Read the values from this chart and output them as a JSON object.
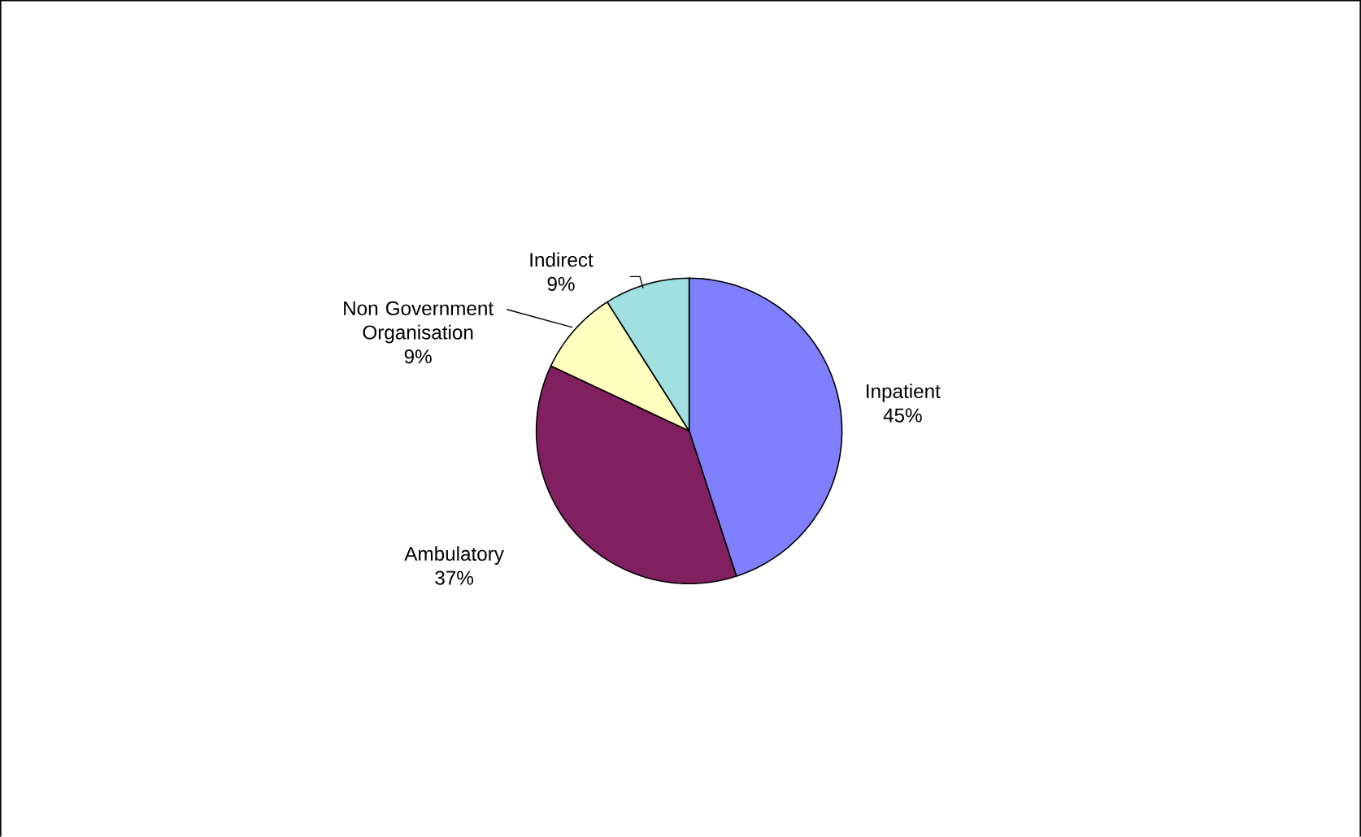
{
  "chart_data": {
    "type": "pie",
    "categories": [
      "Inpatient",
      "Ambulatory",
      "Non Government Organisation",
      "Indirect"
    ],
    "values": [
      45,
      37,
      9,
      9
    ],
    "value_labels": [
      "45%",
      "37%",
      "9%",
      "9%"
    ],
    "colors": [
      "#8080ff",
      "#802060",
      "#ffffc0",
      "#a0e0e0"
    ]
  }
}
